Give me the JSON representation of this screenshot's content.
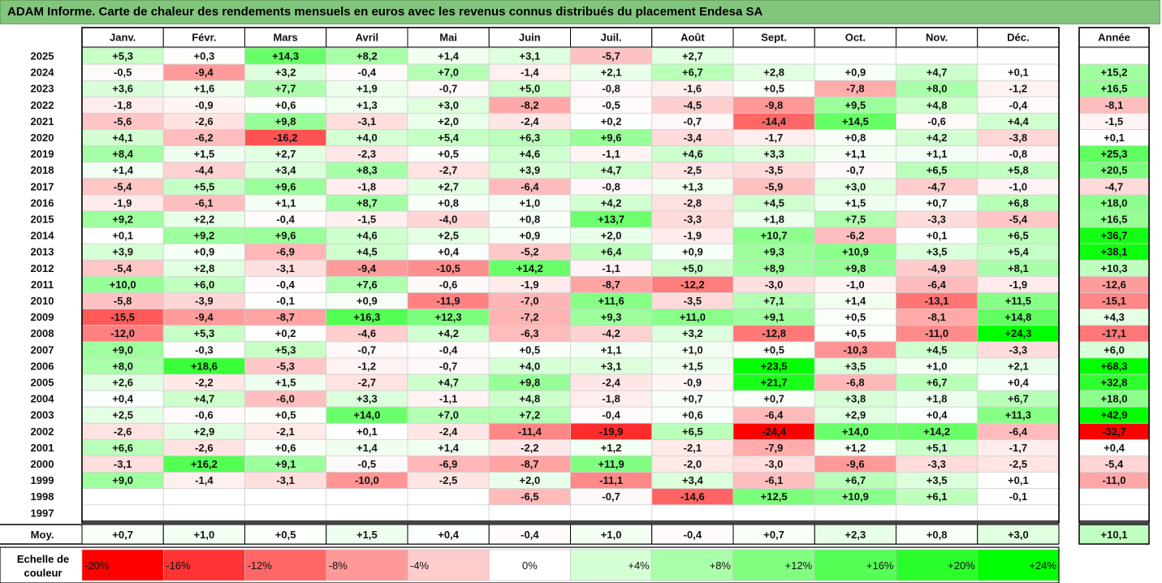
{
  "title": "ADAM Informe. Carte de chaleur des rendements mensuels en euros avec les revenus connus distribués du placement Endesa SA",
  "colors": {
    "title_bg": "#82c57d",
    "negative": "#ff0000",
    "positive": "#00ff00",
    "neutral": "#ffffff"
  },
  "scale_label": "Echelle de couleur",
  "scale": [
    {
      "label": "-20%",
      "value": -20
    },
    {
      "label": "-16%",
      "value": -16
    },
    {
      "label": "-12%",
      "value": -12
    },
    {
      "label": "-8%",
      "value": -8
    },
    {
      "label": "-4%",
      "value": -4
    },
    {
      "label": "0%",
      "value": 0
    },
    {
      "label": "+4%",
      "value": 4
    },
    {
      "label": "+8%",
      "value": 8
    },
    {
      "label": "+12%",
      "value": 12
    },
    {
      "label": "+16%",
      "value": 16
    },
    {
      "label": "+20%",
      "value": 20
    },
    {
      "label": "+24%",
      "value": 24
    }
  ],
  "chart_data": {
    "type": "heatmap",
    "months": [
      "Janv.",
      "Févr.",
      "Mars",
      "Avril",
      "Mai",
      "Juin",
      "Juil.",
      "Août",
      "Sept.",
      "Oct.",
      "Nov.",
      "Déc."
    ],
    "year_header": "Année",
    "rows": [
      {
        "year": "2025",
        "values": [
          "+5,3",
          "+0,3",
          "+14,3",
          "+8,2",
          "+1,4",
          "+3,1",
          "-5,7",
          "+2,7",
          "",
          "",
          "",
          ""
        ],
        "annual": ""
      },
      {
        "year": "2024",
        "values": [
          "-0,5",
          "-9,4",
          "+3,2",
          "-0,4",
          "+7,0",
          "-1,4",
          "+2,1",
          "+6,7",
          "+2,8",
          "+0,9",
          "+4,7",
          "+0,1"
        ],
        "annual": "+15,2"
      },
      {
        "year": "2023",
        "values": [
          "+3,6",
          "+1,6",
          "+7,7",
          "+1,9",
          "-0,7",
          "+5,0",
          "-0,8",
          "-1,6",
          "+0,5",
          "-7,8",
          "+8,0",
          "-1,2"
        ],
        "annual": "+16,5"
      },
      {
        "year": "2022",
        "values": [
          "-1,8",
          "-0,9",
          "+0,6",
          "+1,3",
          "+3,0",
          "-8,2",
          "-0,5",
          "-4,5",
          "-9,8",
          "+9,5",
          "+4,8",
          "-0,4"
        ],
        "annual": "-8,1"
      },
      {
        "year": "2021",
        "values": [
          "-5,6",
          "-2,6",
          "+9,8",
          "-3,1",
          "+2,0",
          "-2,4",
          "+0,2",
          "-0,7",
          "-14,4",
          "+14,5",
          "-0,6",
          "+4,4"
        ],
        "annual": "-1,5"
      },
      {
        "year": "2020",
        "values": [
          "+4,1",
          "-6,2",
          "-16,2",
          "+4,0",
          "+5,4",
          "+6,3",
          "+9,6",
          "-3,4",
          "-1,7",
          "+0,8",
          "+4,2",
          "-3,8"
        ],
        "annual": "+0,1"
      },
      {
        "year": "2019",
        "values": [
          "+8,4",
          "+1,5",
          "+2,7",
          "-2,3",
          "+0,5",
          "+4,6",
          "-1,1",
          "+4,6",
          "+3,3",
          "+1,1",
          "+1,1",
          "-0,8"
        ],
        "annual": "+25,3"
      },
      {
        "year": "2018",
        "values": [
          "+1,4",
          "-4,4",
          "+3,4",
          "+8,3",
          "-2,7",
          "+3,9",
          "+4,7",
          "-2,5",
          "-3,5",
          "-0,7",
          "+6,5",
          "+5,8"
        ],
        "annual": "+20,5"
      },
      {
        "year": "2017",
        "values": [
          "-5,4",
          "+5,5",
          "+9,6",
          "-1,8",
          "+2,7",
          "-6,4",
          "-0,8",
          "+1,3",
          "-5,9",
          "+3,0",
          "-4,7",
          "-1,0"
        ],
        "annual": "-4,7"
      },
      {
        "year": "2016",
        "values": [
          "-1,9",
          "-6,1",
          "+1,1",
          "+8,7",
          "+0,8",
          "+1,0",
          "+4,2",
          "-2,8",
          "+4,5",
          "+1,5",
          "+0,7",
          "+6,8"
        ],
        "annual": "+18,0"
      },
      {
        "year": "2015",
        "values": [
          "+9,2",
          "+2,2",
          "-0,4",
          "-1,5",
          "-4,0",
          "+0,8",
          "+13,7",
          "-3,3",
          "+1,8",
          "+7,5",
          "-3,3",
          "-5,4"
        ],
        "annual": "+16,5"
      },
      {
        "year": "2014",
        "values": [
          "+0,1",
          "+9,2",
          "+9,6",
          "+4,6",
          "+2,5",
          "+0,9",
          "+2,0",
          "-1,9",
          "+10,7",
          "-6,2",
          "+0,1",
          "+6,5"
        ],
        "annual": "+36,7"
      },
      {
        "year": "2013",
        "values": [
          "+3,9",
          "+0,9",
          "-6,9",
          "+4,5",
          "+0,4",
          "-5,2",
          "+6,4",
          "+0,9",
          "+9,3",
          "+10,9",
          "+3,5",
          "+5,4"
        ],
        "annual": "+38,1"
      },
      {
        "year": "2012",
        "values": [
          "-5,4",
          "+2,8",
          "-3,1",
          "-9,4",
          "-10,5",
          "+14,2",
          "-1,1",
          "+5,0",
          "+8,9",
          "+9,8",
          "-4,9",
          "+8,1"
        ],
        "annual": "+10,3"
      },
      {
        "year": "2011",
        "values": [
          "+10,0",
          "+6,0",
          "-0,4",
          "+7,6",
          "-0,6",
          "-1,9",
          "-8,7",
          "-12,2",
          "-3,0",
          "-1,0",
          "-6,4",
          "-1,9"
        ],
        "annual": "-12,6"
      },
      {
        "year": "2010",
        "values": [
          "-5,8",
          "-3,9",
          "-0,1",
          "+0,9",
          "-11,9",
          "-7,0",
          "+11,6",
          "-3,5",
          "+7,1",
          "+1,4",
          "-13,1",
          "+11,5"
        ],
        "annual": "-15,1"
      },
      {
        "year": "2009",
        "values": [
          "-15,5",
          "-9,4",
          "-8,7",
          "+16,3",
          "+12,3",
          "-7,2",
          "+9,3",
          "+11,0",
          "+9,1",
          "+0,5",
          "-8,1",
          "+14,8"
        ],
        "annual": "+4,3"
      },
      {
        "year": "2008",
        "values": [
          "-12,0",
          "+5,3",
          "+0,2",
          "-4,6",
          "+4,2",
          "-6,3",
          "-4,2",
          "+3,2",
          "-12,8",
          "+0,5",
          "-11,0",
          "+24,3"
        ],
        "annual": "-17,1"
      },
      {
        "year": "2007",
        "values": [
          "+9,0",
          "-0,3",
          "+5,3",
          "-0,7",
          "-0,4",
          "+0,5",
          "+1,1",
          "+1,0",
          "+0,5",
          "-10,3",
          "+4,5",
          "-3,3"
        ],
        "annual": "+6,0"
      },
      {
        "year": "2006",
        "values": [
          "+8,0",
          "+18,6",
          "-5,3",
          "-1,2",
          "-0,7",
          "+4,0",
          "+3,1",
          "+1,5",
          "+23,5",
          "+3,5",
          "+1,0",
          "+2,1"
        ],
        "annual": "+68,3"
      },
      {
        "year": "2005",
        "values": [
          "+2,6",
          "-2,2",
          "+1,5",
          "-2,7",
          "+4,7",
          "+9,8",
          "-2,4",
          "-0,9",
          "+21,7",
          "-6,8",
          "+6,7",
          "+0,4"
        ],
        "annual": "+32,8"
      },
      {
        "year": "2004",
        "values": [
          "+0,4",
          "+4,7",
          "-6,0",
          "+3,3",
          "-1,1",
          "+4,8",
          "-1,8",
          "+0,7",
          "+0,7",
          "+3,8",
          "+1,8",
          "+6,7"
        ],
        "annual": "+18,0"
      },
      {
        "year": "2003",
        "values": [
          "+2,5",
          "-0,6",
          "+0,5",
          "+14,0",
          "+7,0",
          "+7,2",
          "-0,4",
          "+0,6",
          "-6,4",
          "+2,9",
          "+0,4",
          "+11,3"
        ],
        "annual": "+42,9"
      },
      {
        "year": "2002",
        "values": [
          "-2,6",
          "+2,9",
          "-2,1",
          "+0,1",
          "-2,4",
          "-11,4",
          "-19,9",
          "+6,5",
          "-24,4",
          "+14,0",
          "+14,2",
          "-6,4"
        ],
        "annual": "-32,7"
      },
      {
        "year": "2001",
        "values": [
          "+6,6",
          "-2,6",
          "+0,6",
          "+1,4",
          "+1,4",
          "-2,2",
          "+1,2",
          "-2,1",
          "-7,9",
          "+1,2",
          "+5,1",
          "-1,7"
        ],
        "annual": "+0,4"
      },
      {
        "year": "2000",
        "values": [
          "-3,1",
          "+16,2",
          "+9,1",
          "-0,5",
          "-6,9",
          "-8,7",
          "+11,9",
          "-2,0",
          "-3,0",
          "-9,6",
          "-3,3",
          "-2,5"
        ],
        "annual": "-5,4"
      },
      {
        "year": "1999",
        "values": [
          "+9,0",
          "-1,4",
          "-3,1",
          "-10,0",
          "-2,5",
          "+2,0",
          "-11,1",
          "+3,4",
          "-6,1",
          "+6,7",
          "+3,5",
          "+0,1"
        ],
        "annual": "-11,0"
      },
      {
        "year": "1998",
        "values": [
          "",
          "",
          "",
          "",
          "",
          "-6,5",
          "-0,7",
          "-14,6",
          "+12,5",
          "+10,9",
          "+6,1",
          "-0,1"
        ],
        "annual": ""
      },
      {
        "year": "1997",
        "values": [
          "",
          "",
          "",
          "",
          "",
          "",
          "",
          "",
          "",
          "",
          "",
          ""
        ],
        "annual": ""
      }
    ],
    "average": {
      "label": "Moy.",
      "values": [
        "+0,7",
        "+1,0",
        "+0,5",
        "+1,5",
        "+0,4",
        "-0,4",
        "+1,0",
        "-0,4",
        "+0,7",
        "+2,3",
        "+0,8",
        "+3,0"
      ],
      "annual": "+10,1"
    }
  }
}
